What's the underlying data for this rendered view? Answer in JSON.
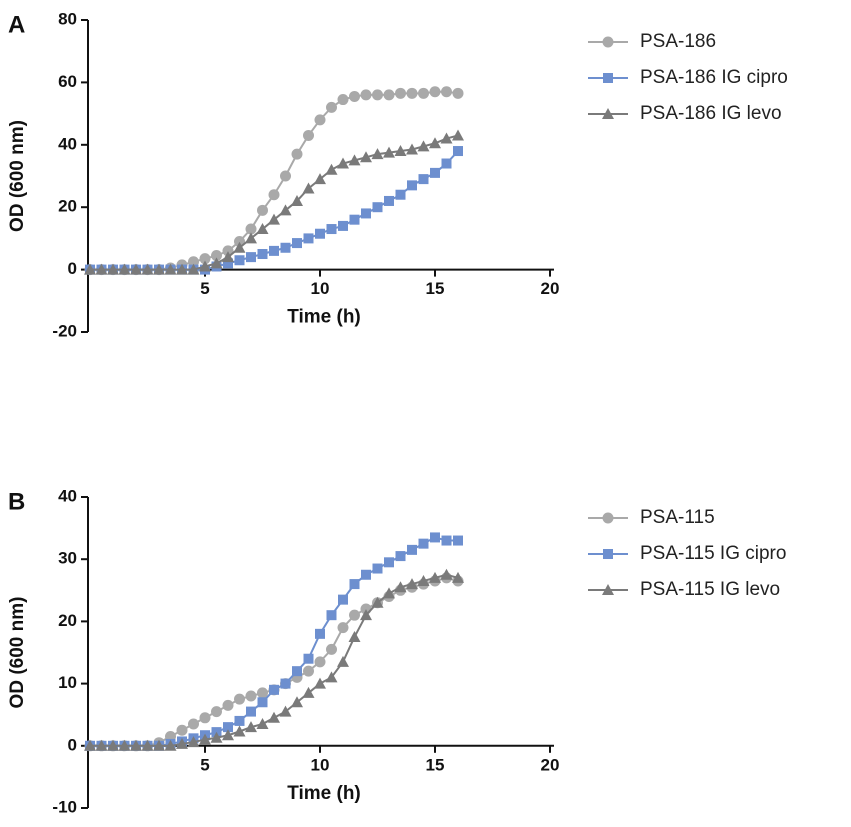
{
  "chart_data": [
    {
      "type": "line",
      "panel": "A",
      "xlabel": "Time (h)",
      "ylabel": "OD (600 nm)",
      "x": [
        0,
        0.5,
        1,
        1.5,
        2,
        2.5,
        3,
        3.5,
        4,
        4.5,
        5,
        5.5,
        6,
        6.5,
        7,
        7.5,
        8,
        8.5,
        9,
        9.5,
        10,
        10.5,
        11,
        11.5,
        12,
        12.5,
        13,
        13.5,
        14,
        14.5,
        15,
        15.5,
        16
      ],
      "xlim": [
        0,
        20
      ],
      "xticks": [
        5,
        10,
        15,
        20
      ],
      "ylim": [
        -20,
        80
      ],
      "yticks": [
        -20,
        0,
        20,
        40,
        60,
        80
      ],
      "series": [
        {
          "name": "PSA-186",
          "color": "#a9a9a9",
          "marker": "circle",
          "values": [
            0,
            0,
            0,
            0,
            0,
            0,
            0,
            0.5,
            1.5,
            2.5,
            3.5,
            4.5,
            6,
            9,
            13,
            19,
            24,
            30,
            37,
            43,
            48,
            52,
            54.5,
            55.5,
            56,
            56,
            56,
            56.5,
            56.5,
            56.5,
            57,
            57,
            56.5
          ]
        },
        {
          "name": "PSA-186 IG cipro",
          "color": "#6d8fcf",
          "marker": "square",
          "values": [
            0,
            0,
            0,
            0,
            0,
            0,
            0,
            0,
            0,
            0,
            0,
            1,
            2,
            3,
            4,
            5,
            6,
            7,
            8.5,
            10,
            11.5,
            13,
            14,
            16,
            18,
            20,
            22,
            24,
            27,
            29,
            31,
            34,
            38
          ]
        },
        {
          "name": "PSA-186 IG levo",
          "color": "#7a7a7a",
          "marker": "triangle",
          "values": [
            0,
            0,
            0,
            0,
            0,
            0,
            0,
            0,
            0,
            0,
            1,
            2,
            4,
            7,
            10,
            13,
            16,
            19,
            22,
            26,
            29,
            32,
            34,
            35,
            36,
            37,
            37.5,
            38,
            38.5,
            39.5,
            40.5,
            42,
            43
          ]
        }
      ]
    },
    {
      "type": "line",
      "panel": "B",
      "xlabel": "Time (h)",
      "ylabel": "OD (600 nm)",
      "x": [
        0,
        0.5,
        1,
        1.5,
        2,
        2.5,
        3,
        3.5,
        4,
        4.5,
        5,
        5.5,
        6,
        6.5,
        7,
        7.5,
        8,
        8.5,
        9,
        9.5,
        10,
        10.5,
        11,
        11.5,
        12,
        12.5,
        13,
        13.5,
        14,
        14.5,
        15,
        15.5,
        16
      ],
      "xlim": [
        0,
        20
      ],
      "xticks": [
        5,
        10,
        15,
        20
      ],
      "ylim": [
        -10,
        40
      ],
      "yticks": [
        -10,
        0,
        10,
        20,
        30,
        40
      ],
      "series": [
        {
          "name": "PSA-115",
          "color": "#a9a9a9",
          "marker": "circle",
          "values": [
            0,
            0,
            0,
            0,
            0,
            0,
            0.5,
            1.5,
            2.5,
            3.5,
            4.5,
            5.5,
            6.5,
            7.5,
            8,
            8.5,
            9,
            10,
            11,
            12,
            13.5,
            15.5,
            19,
            21,
            22,
            23,
            24,
            25,
            25.5,
            26,
            26.5,
            27,
            26.5
          ]
        },
        {
          "name": "PSA-115 IG cipro",
          "color": "#6d8fcf",
          "marker": "square",
          "values": [
            0,
            0,
            0,
            0,
            0,
            0,
            0,
            0.3,
            0.7,
            1.2,
            1.7,
            2.2,
            3,
            4,
            5.5,
            7,
            9,
            10,
            12,
            14,
            18,
            21,
            23.5,
            26,
            27.5,
            28.5,
            29.5,
            30.5,
            31.5,
            32.5,
            33.5,
            33,
            33
          ]
        },
        {
          "name": "PSA-115 IG levo",
          "color": "#7a7a7a",
          "marker": "triangle",
          "values": [
            0,
            0,
            0,
            0,
            0,
            0,
            0,
            0,
            0.3,
            0.6,
            1,
            1.3,
            1.7,
            2.3,
            3,
            3.5,
            4.5,
            5.5,
            7,
            8.5,
            10,
            11,
            13.5,
            17.5,
            21,
            23,
            24.5,
            25.5,
            26,
            26.5,
            27,
            27.5,
            27
          ]
        }
      ]
    }
  ]
}
